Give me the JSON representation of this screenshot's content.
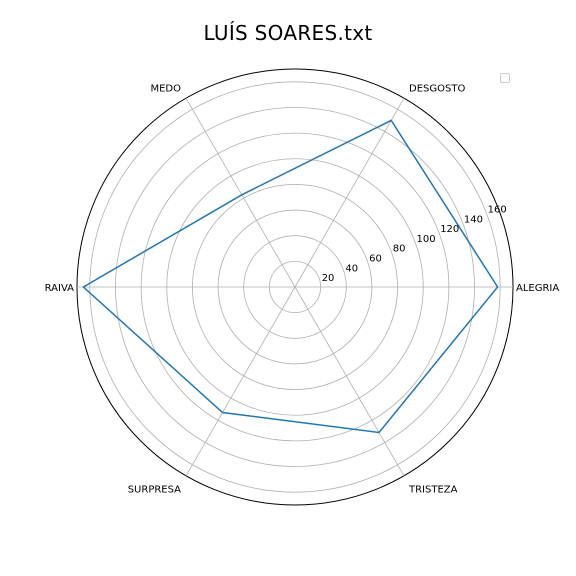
{
  "chart_data": {
    "type": "radar",
    "title": "LUÍS SOARES.txt",
    "categories": [
      "ALEGRIA",
      "DESGOSTO",
      "MEDO",
      "RAIVA",
      "SURPRESA",
      "TRISTEZA"
    ],
    "values": [
      158,
      150,
      83,
      165,
      113,
      131
    ],
    "radial_ticks": [
      20,
      40,
      60,
      80,
      100,
      120,
      140,
      160
    ],
    "rlim": [
      0,
      170
    ],
    "grid": true,
    "legend": "top-right",
    "colors": {
      "series": "#1f77b4",
      "grid": "#b0b0b0",
      "spine": "#000000"
    }
  }
}
